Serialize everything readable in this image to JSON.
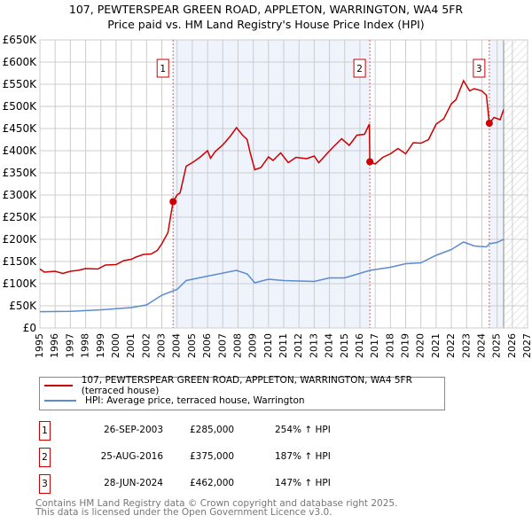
{
  "title": "107, PEWTERSPEAR GREEN ROAD, APPLETON, WARRINGTON, WA4 5FR",
  "subtitle": "Price paid vs. HM Land Registry's House Price Index (HPI)",
  "chart_data": {
    "type": "line",
    "title": "107, PEWTERSPEAR GREEN ROAD, APPLETON, WARRINGTON, WA4 5FR",
    "subtitle": "Price paid vs. HM Land Registry's House Price Index (HPI)",
    "xlim": [
      1995,
      2027
    ],
    "ylim": [
      0,
      650000
    ],
    "x_ticks": [
      "1995",
      "1996",
      "1997",
      "1998",
      "1999",
      "2000",
      "2001",
      "2002",
      "2003",
      "2004",
      "2005",
      "2006",
      "2007",
      "2008",
      "2009",
      "2010",
      "2011",
      "2012",
      "2013",
      "2014",
      "2015",
      "2016",
      "2017",
      "2018",
      "2019",
      "2020",
      "2021",
      "2022",
      "2023",
      "2024",
      "2025",
      "2026",
      "2027"
    ],
    "y_ticks": [
      {
        "v": 0,
        "label": "£0"
      },
      {
        "v": 50000,
        "label": "£50K"
      },
      {
        "v": 100000,
        "label": "£100K"
      },
      {
        "v": 150000,
        "label": "£150K"
      },
      {
        "v": 200000,
        "label": "£200K"
      },
      {
        "v": 250000,
        "label": "£250K"
      },
      {
        "v": 300000,
        "label": "£300K"
      },
      {
        "v": 350000,
        "label": "£350K"
      },
      {
        "v": 400000,
        "label": "£400K"
      },
      {
        "v": 450000,
        "label": "£450K"
      },
      {
        "v": 500000,
        "label": "£500K"
      },
      {
        "v": 550000,
        "label": "£550K"
      },
      {
        "v": 600000,
        "label": "£600K"
      },
      {
        "v": 650000,
        "label": "£650K"
      }
    ],
    "grid": true,
    "forecast_start": 2025.43,
    "series": [
      {
        "name": "107, PEWTERSPEAR GREEN ROAD, APPLETON, WARRINGTON, WA4 5FR (terraced house)",
        "color": "#cc0000",
        "x": [
          1995,
          1995.3,
          1996,
          1996.5,
          1997,
          1997.5,
          1998,
          1998.8,
          1999.3,
          2000,
          2000.5,
          2001,
          2001.3,
          2001.8,
          2002.3,
          2002.7,
          2003,
          2003.4,
          2003.74,
          2004,
          2004.2,
          2004.6,
          2005,
          2005.5,
          2006,
          2006.2,
          2006.5,
          2007,
          2007.5,
          2007.9,
          2008.3,
          2008.6,
          2008.8,
          2009.1,
          2009.5,
          2010,
          2010.3,
          2010.8,
          2011.3,
          2011.8,
          2012.5,
          2013,
          2013.3,
          2013.8,
          2014.3,
          2014.8,
          2015.3,
          2015.8,
          2016.3,
          2016.62,
          2016.65,
          2017,
          2017.5,
          2018,
          2018.5,
          2019,
          2019.5,
          2020,
          2020.5,
          2021,
          2021.5,
          2022,
          2022.3,
          2022.8,
          2023.2,
          2023.5,
          2024,
          2024.3,
          2024.49,
          2024.8,
          2025.2,
          2025.43
        ],
        "y": [
          133000,
          126000,
          128000,
          123000,
          128000,
          130000,
          134000,
          133000,
          142000,
          143000,
          152000,
          155000,
          160000,
          166000,
          167000,
          175000,
          190000,
          215000,
          285000,
          300000,
          305000,
          365000,
          373000,
          385000,
          400000,
          383000,
          398000,
          413000,
          433000,
          452000,
          435000,
          425000,
          395000,
          357000,
          362000,
          386000,
          378000,
          395000,
          373000,
          385000,
          382000,
          388000,
          373000,
          392000,
          410000,
          427000,
          412000,
          435000,
          437000,
          460000,
          375000,
          370000,
          385000,
          393000,
          405000,
          393000,
          418000,
          417000,
          425000,
          460000,
          472000,
          506000,
          515000,
          558000,
          535000,
          540000,
          535000,
          525000,
          462000,
          475000,
          470000,
          493000
        ]
      },
      {
        "name": "HPI: Average price, terraced house, Warrington",
        "color": "#5b8bd0",
        "x": [
          1995,
          1997,
          1999,
          2001,
          2002,
          2003,
          2004,
          2004.6,
          2006,
          2007.9,
          2008.6,
          2009.1,
          2010,
          2011,
          2013,
          2014,
          2015,
          2016.65,
          2018,
          2019,
          2020,
          2021,
          2022,
          2022.8,
          2023.5,
          2024.3,
          2024.5,
          2025,
          2025.43
        ],
        "y": [
          36700,
          37500,
          41000,
          46000,
          52000,
          74000,
          87000,
          107000,
          117000,
          130000,
          122000,
          102000,
          110000,
          107000,
          105000,
          113000,
          113000,
          130000,
          137000,
          145000,
          147000,
          164000,
          177000,
          194000,
          185000,
          183000,
          190000,
          193000,
          200000
        ]
      }
    ],
    "sales": [
      {
        "n": "1",
        "x": 2003.74,
        "y": 285000,
        "date": "26-SEP-2003",
        "price": "£285,000",
        "hpi": "254% ↑ HPI"
      },
      {
        "n": "2",
        "x": 2016.65,
        "y": 375000,
        "date": "25-AUG-2016",
        "price": "£375,000",
        "hpi": "187% ↑ HPI"
      },
      {
        "n": "3",
        "x": 2024.49,
        "y": 462000,
        "date": "28-JUN-2024",
        "price": "£462,000",
        "hpi": "147% ↑ HPI"
      }
    ]
  },
  "legend": {
    "red": "107, PEWTERSPEAR GREEN ROAD, APPLETON, WARRINGTON, WA4 5FR (terraced house)",
    "blue": "HPI: Average price, terraced house, Warrington"
  },
  "footer": {
    "line1": "Contains HM Land Registry data © Crown copyright and database right 2025.",
    "line2": "This data is licensed under the Open Government Licence v3.0."
  }
}
